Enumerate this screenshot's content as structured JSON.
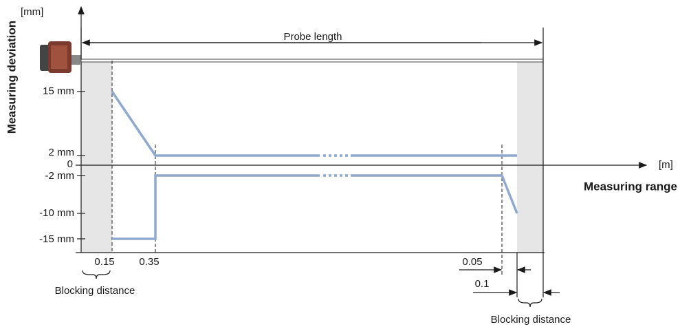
{
  "axis": {
    "y_unit": "[mm]",
    "y_title": "Measuring deviation",
    "x_unit": "[m]",
    "x_title": "Measuring range"
  },
  "probe_label": "Probe length",
  "y_labels": [
    "15 mm",
    "2 mm",
    "0",
    "-2 mm",
    "-10 mm",
    "-15 mm"
  ],
  "x_labels": [
    "0.15",
    "0.35",
    "0.05",
    "0.1"
  ],
  "blocking_labels": [
    "Blocking distance",
    "Blocking distance"
  ]
}
